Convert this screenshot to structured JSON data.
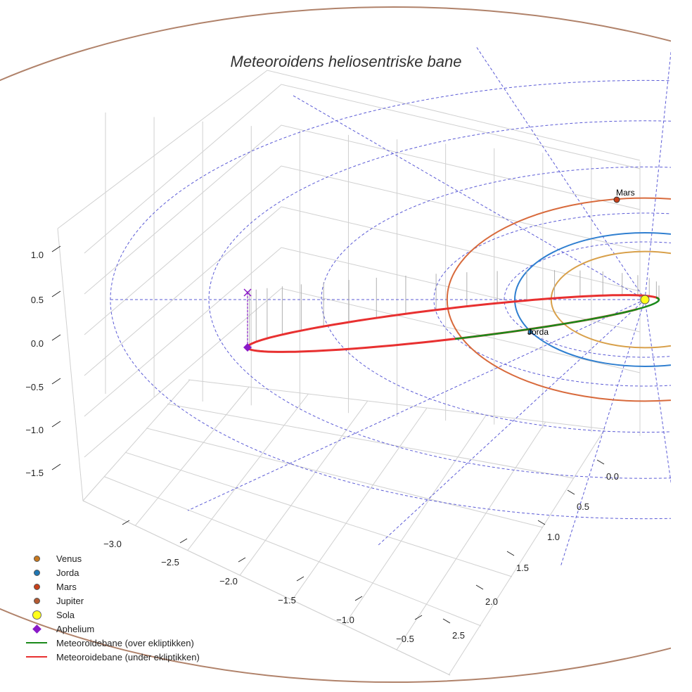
{
  "chart_data": {
    "type": "line",
    "projection": "3d",
    "title": "Meteoroidens heliosentriske bane",
    "xlabel": "",
    "ylabel": "",
    "zlabel": "",
    "x_ticks": [
      "−3.0",
      "−2.5",
      "−2.0",
      "−1.5",
      "−1.0",
      "−0.5"
    ],
    "y_ticks": [
      "0.0",
      "0.5",
      "1.0",
      "1.5",
      "2.0",
      "2.5"
    ],
    "z_ticks": [
      "1.0",
      "0.5",
      "0.0",
      "−0.5",
      "−1.0",
      "−1.5"
    ],
    "grid": true,
    "legend_position": "bottom-left",
    "planets": [
      {
        "name": "Venus",
        "orbit_radius_au": 0.72,
        "color": "#d8a04a",
        "label": ""
      },
      {
        "name": "Jorda",
        "orbit_radius_au": 1.0,
        "color": "#2f7fd0",
        "label": "Jorda"
      },
      {
        "name": "Mars",
        "orbit_radius_au": 1.52,
        "color": "#d86a3c",
        "label": "Mars"
      },
      {
        "name": "Jupiter",
        "orbit_radius_au": 5.2,
        "color": "#b0826a",
        "label": ""
      }
    ],
    "meteoroid_orbit": {
      "perihelion_au": 0.2,
      "aphelion_x_au": -3.4,
      "aphelion_z_au": 0.0,
      "above_color": "#1a8a1a",
      "below_color": "#e83030"
    },
    "legend": [
      {
        "label": "Venus",
        "marker": "dot",
        "color": "#c8781e"
      },
      {
        "label": "Jorda",
        "marker": "dot",
        "color": "#1f77b4"
      },
      {
        "label": "Mars",
        "marker": "dot",
        "color": "#c8401a"
      },
      {
        "label": "Jupiter",
        "marker": "dot",
        "color": "#b45a32"
      },
      {
        "label": "Sola",
        "marker": "dot-big",
        "color": "#ffff1a"
      },
      {
        "label": "Aphelium",
        "marker": "diamond",
        "color": "#8a1ac8"
      },
      {
        "label": "Meteoroidebane (over ekliptikken)",
        "marker": "line",
        "color": "#1a8a1a"
      },
      {
        "label": "Meteoroidebane (under ekliptikken)",
        "marker": "line",
        "color": "#e83030"
      }
    ]
  }
}
